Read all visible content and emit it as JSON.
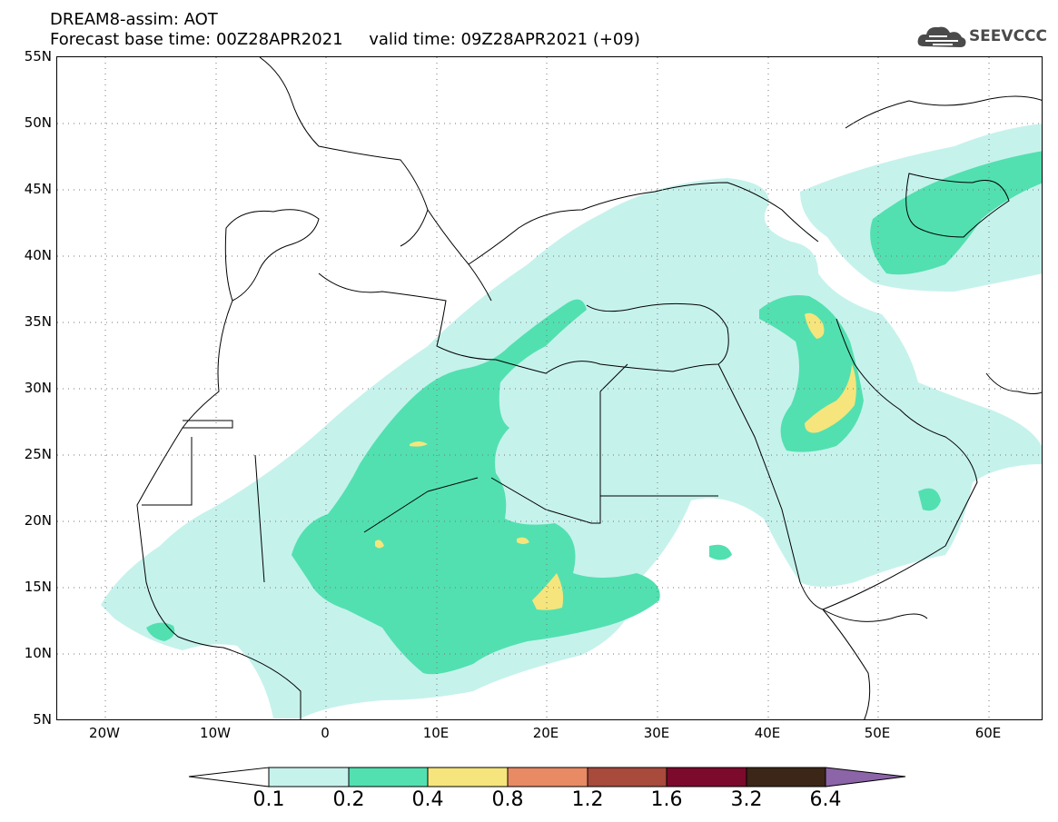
{
  "header": {
    "title": "DREAM8-assim: AOT",
    "base_line": "Forecast base time: 00Z28APR2021     valid time: 09Z28APR2021 (+09)"
  },
  "logo": {
    "text": "SEEVCCC",
    "icon": "cloud-icon"
  },
  "map": {
    "lat_labels": [
      "55N",
      "50N",
      "45N",
      "40N",
      "35N",
      "30N",
      "25N",
      "20N",
      "15N",
      "10N",
      "5N"
    ],
    "lon_labels": [
      "20W",
      "10W",
      "0",
      "10E",
      "20E",
      "30E",
      "40E",
      "50E",
      "60E"
    ],
    "grid": "dotted"
  },
  "colorbar": {
    "levels": [
      "0.1",
      "0.2",
      "0.4",
      "0.8",
      "1.2",
      "1.6",
      "3.2",
      "6.4"
    ],
    "colors": [
      "#c6f2ec",
      "#52e0b0",
      "#f5e57c",
      "#e88a64",
      "#a84a3c",
      "#7c0a2c",
      "#3c2618",
      "#8c64a8"
    ]
  }
}
